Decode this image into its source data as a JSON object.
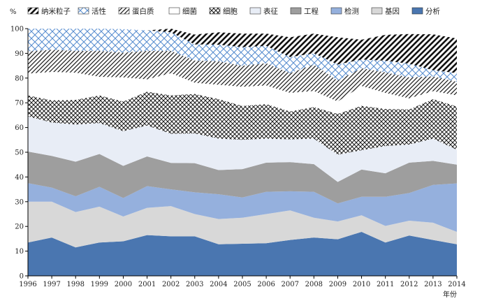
{
  "chart_data": {
    "type": "area",
    "stacked": true,
    "y_unit": "%",
    "xlabel": "年份",
    "ylim": [
      0,
      100
    ],
    "yticks": [
      0,
      10,
      20,
      30,
      40,
      50,
      60,
      70,
      80,
      90,
      100
    ],
    "x": [
      "1996",
      "1997",
      "1998",
      "1999",
      "2000",
      "2001",
      "2002",
      "2003",
      "2004",
      "2005",
      "2006",
      "2007",
      "2008",
      "2009",
      "2010",
      "2011",
      "2012",
      "2013",
      "2014"
    ],
    "legend_position": "top",
    "series": [
      {
        "name": "分析",
        "fill": "solid",
        "color": "#4a76b0",
        "values": [
          13.5,
          15.5,
          11.5,
          13.5,
          14,
          16.5,
          16,
          16,
          12.8,
          13,
          13.2,
          14.5,
          15.5,
          14.8,
          17.8,
          13.5,
          16.3,
          14.5,
          12.8
        ]
      },
      {
        "name": "基因",
        "fill": "solid",
        "color": "#d8d8d8",
        "values": [
          16.5,
          14.5,
          14.3,
          14.5,
          10,
          11,
          12.2,
          9,
          10.2,
          10.5,
          11.8,
          12,
          8,
          7.2,
          6.7,
          6.7,
          6,
          7,
          5
        ]
      },
      {
        "name": "检测",
        "fill": "solid",
        "color": "#95b0dd",
        "values": [
          7.5,
          5.7,
          6.4,
          8,
          7.5,
          8.8,
          6.8,
          8.8,
          10,
          8.2,
          9,
          7.7,
          10.5,
          7.3,
          7.5,
          11.8,
          11.2,
          15.3,
          19.6
        ]
      },
      {
        "name": "工程",
        "fill": "solid",
        "color": "#9e9e9e",
        "values": [
          12.8,
          12.8,
          14,
          13.3,
          13,
          12,
          10.7,
          11.8,
          9.8,
          11.5,
          11.8,
          11.8,
          11.2,
          8.7,
          11,
          9.5,
          12.3,
          9.7,
          7.6
        ]
      },
      {
        "name": "表征",
        "fill": "solid",
        "color": "#e8edf6",
        "values": [
          14.2,
          13.5,
          15,
          12.5,
          14,
          12.5,
          11.8,
          12,
          12.7,
          11.8,
          9.7,
          9.2,
          10.3,
          11,
          7.8,
          11,
          7.3,
          9,
          6
        ]
      },
      {
        "name": "细胞",
        "fill": "crosshatch",
        "color": "#1a1a1a",
        "values": [
          8.5,
          9,
          10,
          11.2,
          12,
          13.7,
          15.5,
          16,
          16,
          13.7,
          14,
          11.3,
          12.8,
          16.5,
          18,
          15,
          14.2,
          16,
          17.5
        ]
      },
      {
        "name": "细菌",
        "fill": "solid",
        "color": "#ffffff",
        "values": [
          8.8,
          11.5,
          11,
          7.5,
          9.8,
          5,
          9,
          4.5,
          5.8,
          7.8,
          7.5,
          7.5,
          6.5,
          5,
          8,
          6.5,
          4.5,
          3.2,
          4.5
        ]
      },
      {
        "name": "蛋白质",
        "fill": "diagonal-right",
        "color": "#1a1a1a",
        "values": [
          9,
          9,
          8.8,
          10.5,
          10,
          11.5,
          9,
          9,
          9.5,
          8.5,
          9,
          8,
          10.7,
          8.5,
          7.2,
          8.3,
          8.5,
          6,
          5.5
        ]
      },
      {
        "name": "活性",
        "fill": "lattice",
        "color": "#5a8fd0",
        "values": [
          9.2,
          8.5,
          9,
          9,
          9.5,
          8.3,
          7.5,
          6.5,
          6.7,
          7.5,
          7,
          6.5,
          4.5,
          6.5,
          3.5,
          4.7,
          5.5,
          2.5,
          3.5
        ]
      },
      {
        "name": "纳米粒子",
        "fill": "diagonal-left",
        "color": "#111111",
        "values": [
          0,
          0,
          0,
          0,
          0,
          0,
          1.5,
          4,
          5,
          5.5,
          5,
          8,
          8,
          11,
          8,
          10.5,
          12,
          14.5,
          14
        ]
      }
    ]
  }
}
